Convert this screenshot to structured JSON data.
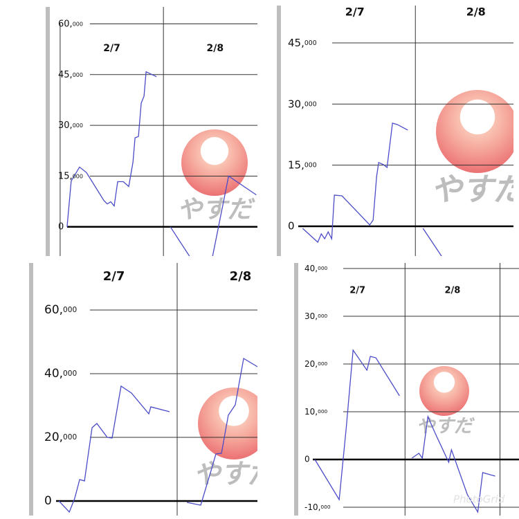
{
  "watermark": "PhotoGrid",
  "chart_data": [
    {
      "type": "line",
      "categories": [
        "2/7",
        "2/8"
      ],
      "logo": "やすだ",
      "x": [
        0.067,
        0.107,
        0.188,
        0.255,
        0.423,
        0.456,
        0.49,
        0.523,
        0.557,
        0.611,
        0.664,
        0.705,
        0.725,
        0.758,
        0.785,
        0.812,
        0.832,
        0.933,
        null,
        1.067,
        1.295,
        null,
        1.463,
        1.631,
        1.899
      ],
      "series": [
        {
          "color": "#4b4bc8",
          "values": [
            0,
            13560,
            17670,
            16030,
            7800,
            6780,
            7400,
            6160,
            13360,
            13360,
            11920,
            19110,
            26300,
            26710,
            36580,
            38630,
            45820,
            44380,
            null,
            0,
            -10680,
            null,
            -10680,
            15000,
            9450
          ]
        }
      ],
      "xlim": [
        -0.1,
        1.91
      ],
      "ylim": [
        -8630,
        65000
      ],
      "yticks": [
        {
          "value": 0,
          "label": "0"
        },
        {
          "value": 15000,
          "label": "15,000"
        },
        {
          "value": 30000,
          "label": "30,000"
        },
        {
          "value": 45000,
          "label": "45,000"
        },
        {
          "value": 60000,
          "label": "60,000"
        }
      ]
    },
    {
      "type": "line",
      "categories": [
        "2/7",
        "2/8"
      ],
      "logo": "やすだ",
      "x": [
        0.069,
        0.194,
        0.223,
        0.251,
        0.28,
        0.309,
        0.331,
        0.394,
        0.623,
        0.651,
        0.68,
        0.697,
        0.737,
        0.766,
        0.811,
        0.851,
        0.937,
        null,
        1.063,
        1.223
      ],
      "series": [
        {
          "color": "#4b4bc8",
          "values": [
            -510,
            -3910,
            -1870,
            -3060,
            -1360,
            -3060,
            7640,
            7470,
            340,
            1530,
            12230,
            15630,
            15120,
            14440,
            25310,
            24970,
            23610,
            null,
            -510,
            -7640
          ]
        }
      ],
      "xlim": [
        -0.11,
        1.81
      ],
      "ylim": [
        -7300,
        54170
      ],
      "yticks": [
        {
          "value": 0,
          "label": "0"
        },
        {
          "value": 15000,
          "label": "15,000"
        },
        {
          "value": 30000,
          "label": "30,000"
        },
        {
          "value": 45000,
          "label": "45,000"
        }
      ]
    },
    {
      "type": "line",
      "categories": [
        "2/7",
        "2/8"
      ],
      "logo": "やすだ",
      "x": [
        0.066,
        0.148,
        0.191,
        0.23,
        0.268,
        0.295,
        0.328,
        0.366,
        0.448,
        0.486,
        0.557,
        0.639,
        0.776,
        0.792,
        0.94,
        null,
        1.077,
        1.186,
        1.268,
        1.306,
        1.35,
        1.404,
        1.459,
        1.525,
        1.634
      ],
      "series": [
        {
          "color": "#4b4bc8",
          "values": [
            0,
            -3480,
            870,
            6740,
            6300,
            13910,
            23040,
            24350,
            20000,
            19780,
            36090,
            33910,
            27390,
            29570,
            28040,
            null,
            -430,
            -1300,
            9570,
            14780,
            15000,
            26960,
            30220,
            44780,
            42170
          ]
        }
      ],
      "xlim": [
        -0.137,
        1.634
      ],
      "ylim": [
        -4570,
        74780
      ],
      "yticks": [
        {
          "value": 0,
          "label": "0"
        },
        {
          "value": 20000,
          "label": "20,000"
        },
        {
          "value": 40000,
          "label": "40,000"
        },
        {
          "value": 60000,
          "label": "60,000"
        }
      ]
    },
    {
      "type": "line",
      "categories": [
        "2/7",
        "2/8"
      ],
      "logo": "やすだ",
      "x": [
        0.051,
        0.307,
        0.38,
        0.453,
        0.599,
        0.635,
        0.693,
        0.942,
        null,
        1.073,
        1.146,
        1.182,
        1.241,
        1.314,
        1.46,
        1.489,
        1.657,
        1.766,
        1.818,
        1.949
      ],
      "series": [
        {
          "color": "#4b4bc8",
          "values": [
            0,
            -8410,
            6380,
            22900,
            18700,
            21590,
            21300,
            13330,
            null,
            290,
            1300,
            290,
            8990,
            5650,
            -580,
            2030,
            -7390,
            -11010,
            -2750,
            -3480
          ]
        }
      ],
      "xlim": [
        -0.124,
        2.2
      ],
      "ylim": [
        -11740,
        41160
      ],
      "yticks": [
        {
          "value": -10000,
          "label": "-10,000"
        },
        {
          "value": 0,
          "label": "0"
        },
        {
          "value": 10000,
          "label": "10,000"
        },
        {
          "value": 20000,
          "label": "20,000"
        },
        {
          "value": 30000,
          "label": "30,000"
        },
        {
          "value": 40000,
          "label": "40,000"
        }
      ]
    }
  ]
}
